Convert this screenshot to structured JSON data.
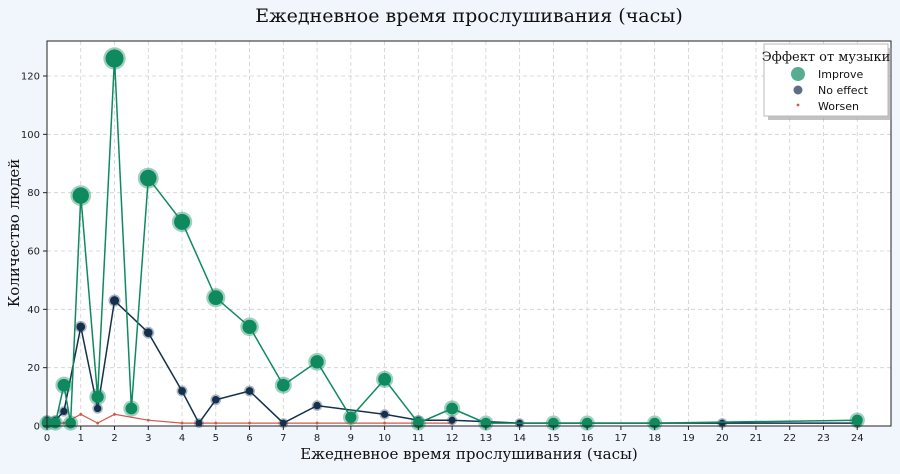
{
  "chart_data": {
    "type": "scatter",
    "title": "Ежедневное время прослушивания (часы)",
    "xlabel": "Ежедневное время прослушивания (часы)",
    "ylabel": "Количество людей",
    "xlim": [
      0,
      25
    ],
    "ylim": [
      0,
      132
    ],
    "x_ticks": [
      "0",
      "1",
      "2",
      "3",
      "4",
      "5",
      "6",
      "7",
      "8",
      "9",
      "10",
      "11",
      "12",
      "13",
      "14",
      "15",
      "16",
      "17",
      "18",
      "19",
      "20",
      "21",
      "22",
      "23",
      "24"
    ],
    "y_ticks": [
      "0",
      "20",
      "40",
      "60",
      "80",
      "100",
      "120"
    ],
    "grid": true,
    "legend": {
      "title": "Эффект от музыки",
      "position": "top-right"
    },
    "series": [
      {
        "name": "Improve",
        "color": "#0f8a5f",
        "x": [
          0,
          0.25,
          0.5,
          0.7,
          1,
          1.5,
          2,
          2.5,
          3,
          4,
          5,
          6,
          7,
          8,
          9,
          10,
          11,
          12,
          13,
          15,
          16,
          18,
          24
        ],
        "values": [
          1,
          1,
          14,
          1,
          79,
          10,
          126,
          6,
          85,
          70,
          44,
          34,
          14,
          22,
          3,
          16,
          1,
          6,
          1,
          1,
          1,
          1,
          2
        ]
      },
      {
        "name": "No effect",
        "color": "#15304d",
        "x": [
          0,
          0.25,
          0.5,
          1,
          1.5,
          2,
          3,
          4,
          4.5,
          5,
          6,
          7,
          8,
          10,
          11,
          12,
          14,
          15,
          20,
          24
        ],
        "values": [
          2,
          2,
          5,
          34,
          6,
          43,
          32,
          12,
          1,
          9,
          12,
          1,
          7,
          4,
          2,
          2,
          1,
          1,
          1,
          1
        ]
      },
      {
        "name": "Worsen",
        "color": "#d2584d",
        "x": [
          0,
          0.5,
          1,
          1.5,
          2,
          3,
          4,
          5,
          6,
          7,
          8,
          9,
          10,
          11,
          12
        ],
        "values": [
          1,
          1,
          4,
          1,
          4,
          2,
          1,
          1,
          1,
          1,
          1,
          1,
          1,
          1,
          1
        ]
      }
    ]
  }
}
